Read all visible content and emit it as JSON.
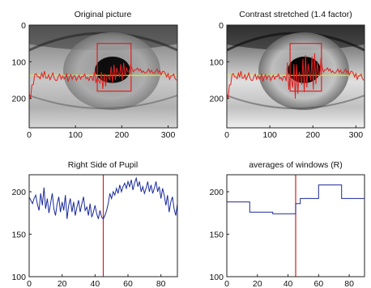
{
  "chart_data": [
    {
      "type": "image",
      "title": "Original picture",
      "image": "grayscale-eye",
      "xlim": [
        0,
        320
      ],
      "ylim": [
        280,
        0
      ],
      "xticks": [
        0,
        100,
        200,
        300
      ],
      "yticks": [
        0,
        100,
        200
      ],
      "pupil": {
        "cx": 180,
        "cy": 122,
        "rx": 38,
        "ry": 36
      },
      "window_rect": {
        "x": [
          147,
          220
        ],
        "y": [
          50,
          180
        ]
      },
      "horizontal_line_y": 137,
      "colors": {
        "rect": "#e02020",
        "profile": "#e02020",
        "line": "#f0f000"
      }
    },
    {
      "type": "image",
      "title": "Contrast stretched (1.4 factor)",
      "image": "grayscale-eye-contrast",
      "xlim": [
        0,
        320
      ],
      "ylim": [
        280,
        0
      ],
      "xticks": [
        0,
        100,
        200,
        300
      ],
      "yticks": [
        0,
        100,
        200
      ],
      "pupil": {
        "cx": 180,
        "cy": 122,
        "rx": 38,
        "ry": 36
      },
      "window_rect": {
        "x": [
          147,
          220
        ],
        "y": [
          50,
          180
        ]
      },
      "horizontal_line_y": 137,
      "colors": {
        "rect": "#e02020",
        "profile": "#e02020",
        "line": "#f0f000"
      }
    },
    {
      "type": "line",
      "title": "Right Side of Pupil",
      "xlim": [
        0,
        90
      ],
      "ylim": [
        100,
        220
      ],
      "xticks": [
        0,
        20,
        40,
        60,
        80
      ],
      "yticks": [
        100,
        150,
        200
      ],
      "vline_x": 45,
      "x": [
        0,
        1,
        2,
        3,
        4,
        5,
        6,
        7,
        8,
        9,
        10,
        11,
        12,
        13,
        14,
        15,
        16,
        17,
        18,
        19,
        20,
        21,
        22,
        23,
        24,
        25,
        26,
        27,
        28,
        29,
        30,
        31,
        32,
        33,
        34,
        35,
        36,
        37,
        38,
        39,
        40,
        41,
        42,
        43,
        44,
        45,
        46,
        47,
        48,
        49,
        50,
        51,
        52,
        53,
        54,
        55,
        56,
        57,
        58,
        59,
        60,
        61,
        62,
        63,
        64,
        65,
        66,
        67,
        68,
        69,
        70,
        71,
        72,
        73,
        74,
        75,
        76,
        77,
        78,
        79,
        80,
        81,
        82,
        83,
        84,
        85,
        86,
        87,
        88,
        89,
        90
      ],
      "series": [
        {
          "values": [
            194,
            190,
            186,
            192,
            196,
            185,
            178,
            198,
            184,
            205,
            180,
            192,
            175,
            186,
            198,
            180,
            172,
            186,
            194,
            176,
            188,
            178,
            196,
            168,
            184,
            192,
            176,
            188,
            172,
            182,
            190,
            176,
            186,
            194,
            178,
            182,
            172,
            186,
            170,
            176,
            184,
            174,
            168,
            178,
            170,
            168,
            172,
            178,
            186,
            198,
            192,
            200,
            196,
            204,
            198,
            208,
            200,
            206,
            210,
            204,
            212,
            206,
            214,
            202,
            210,
            216,
            206,
            212,
            200,
            206,
            198,
            204,
            212,
            200,
            208,
            198,
            204,
            212,
            200,
            206,
            192,
            204,
            196,
            184,
            196,
            176,
            188,
            194,
            180,
            172,
            186
          ],
          "color": "#1a2a9a"
        }
      ],
      "vline_color": "#d02020"
    },
    {
      "type": "line",
      "title": "averages of windows (R)",
      "xlim": [
        0,
        90
      ],
      "ylim": [
        100,
        220
      ],
      "xticks": [
        0,
        20,
        40,
        60,
        80
      ],
      "yticks": [
        100,
        150,
        200
      ],
      "vline_x": 45,
      "x": [
        0,
        15,
        15,
        30,
        30,
        45,
        45,
        48,
        48,
        60,
        60,
        75,
        75,
        90
      ],
      "series": [
        {
          "values": [
            188,
            188,
            176,
            176,
            174,
            174,
            186,
            186,
            192,
            192,
            208,
            208,
            192,
            192
          ],
          "color": "#1a2a9a"
        }
      ],
      "vline_color": "#d02020"
    }
  ]
}
